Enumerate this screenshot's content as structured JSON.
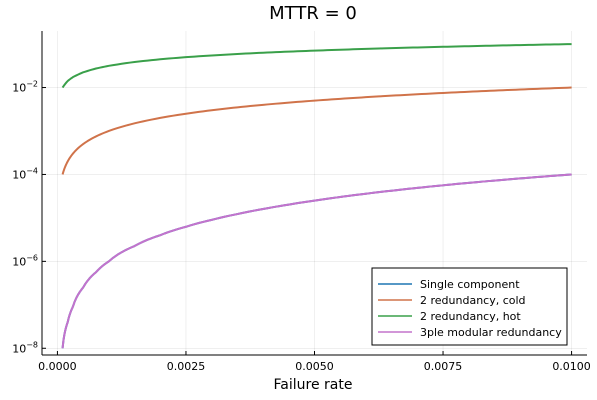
{
  "chart_data": {
    "type": "line",
    "title": "MTTR = 0",
    "xlabel": "Failure rate",
    "ylabel": "",
    "xlim": [
      -0.0003,
      0.0103
    ],
    "ylim": [
      7e-09,
      0.2
    ],
    "yscale": "log",
    "grid": true,
    "legend_position": "bottom-right",
    "x_ticks": [
      {
        "value": 0.0,
        "label": "0.0000"
      },
      {
        "value": 0.0025,
        "label": "0.0025"
      },
      {
        "value": 0.005,
        "label": "0.0050"
      },
      {
        "value": 0.0075,
        "label": "0.0075"
      },
      {
        "value": 0.01,
        "label": "0.0100"
      }
    ],
    "y_ticks": [
      {
        "value": 1e-08,
        "base": "10",
        "exp": "−8"
      },
      {
        "value": 1e-06,
        "base": "10",
        "exp": "−6"
      },
      {
        "value": 0.0001,
        "base": "10",
        "exp": "−4"
      },
      {
        "value": 0.01,
        "base": "10",
        "exp": "−2"
      }
    ],
    "x": [
      0.0001,
      0.0002,
      0.0003,
      0.0005,
      0.00075,
      0.001,
      0.0015,
      0.002,
      0.0025,
      0.003,
      0.0035,
      0.004,
      0.0045,
      0.005,
      0.0055,
      0.006,
      0.0065,
      0.007,
      0.0075,
      0.008,
      0.0085,
      0.009,
      0.0095,
      0.01
    ],
    "series": [
      {
        "name": "Single component",
        "color": "#1f77b4",
        "values": [
          1e-08,
          4e-08,
          9e-08,
          2.5e-07,
          5.625e-07,
          1e-06,
          2.25e-06,
          4e-06,
          6.25e-06,
          9e-06,
          1.225e-05,
          1.6e-05,
          2.025e-05,
          2.5e-05,
          3.025e-05,
          3.6e-05,
          4.225e-05,
          4.9e-05,
          5.625e-05,
          6.4e-05,
          7.225e-05,
          8.1e-05,
          9.025e-05,
          0.0001
        ]
      },
      {
        "name": "2 redundancy, cold",
        "color": "#d0734a",
        "values": [
          0.0001,
          0.0002,
          0.0003,
          0.0005,
          0.00075,
          0.001,
          0.0015,
          0.002,
          0.0025,
          0.003,
          0.0035,
          0.004,
          0.0045,
          0.005,
          0.0055,
          0.006,
          0.0065,
          0.007,
          0.0075,
          0.008,
          0.0085,
          0.009,
          0.0095,
          0.01
        ]
      },
      {
        "name": "2 redundancy, hot",
        "color": "#3aa04a",
        "values": [
          0.01,
          0.01414,
          0.01732,
          0.02236,
          0.02739,
          0.03162,
          0.03873,
          0.04472,
          0.05,
          0.05477,
          0.05916,
          0.06325,
          0.06708,
          0.07071,
          0.07416,
          0.07746,
          0.08062,
          0.08367,
          0.0866,
          0.08944,
          0.0922,
          0.09487,
          0.09747,
          0.1
        ]
      },
      {
        "name": "3ple modular redundancy",
        "color": "#c473cc",
        "values": [
          1e-08,
          4e-08,
          9e-08,
          2.5e-07,
          5.625e-07,
          1e-06,
          2.25e-06,
          4e-06,
          6.25e-06,
          9e-06,
          1.225e-05,
          1.6e-05,
          2.025e-05,
          2.5e-05,
          3.025e-05,
          3.6e-05,
          4.225e-05,
          4.9e-05,
          5.625e-05,
          6.4e-05,
          7.225e-05,
          8.1e-05,
          9.025e-05,
          0.0001
        ]
      }
    ]
  }
}
